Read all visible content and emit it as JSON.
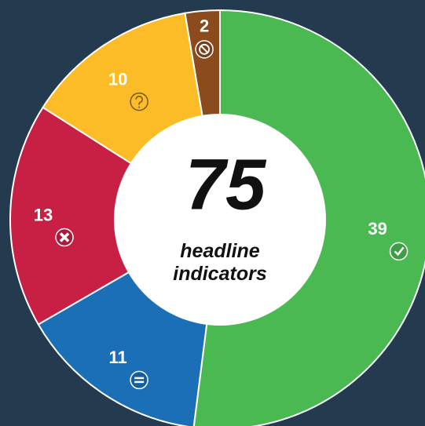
{
  "chart_data": {
    "type": "pie",
    "donut": true,
    "values": [
      39,
      11,
      13,
      10,
      2
    ],
    "colors": [
      "#4ab952",
      "#1b6fb7",
      "#c81f44",
      "#fbbc27",
      "#8b4b1d"
    ],
    "center_value": 75,
    "center_label": "headline indicators"
  }
}
